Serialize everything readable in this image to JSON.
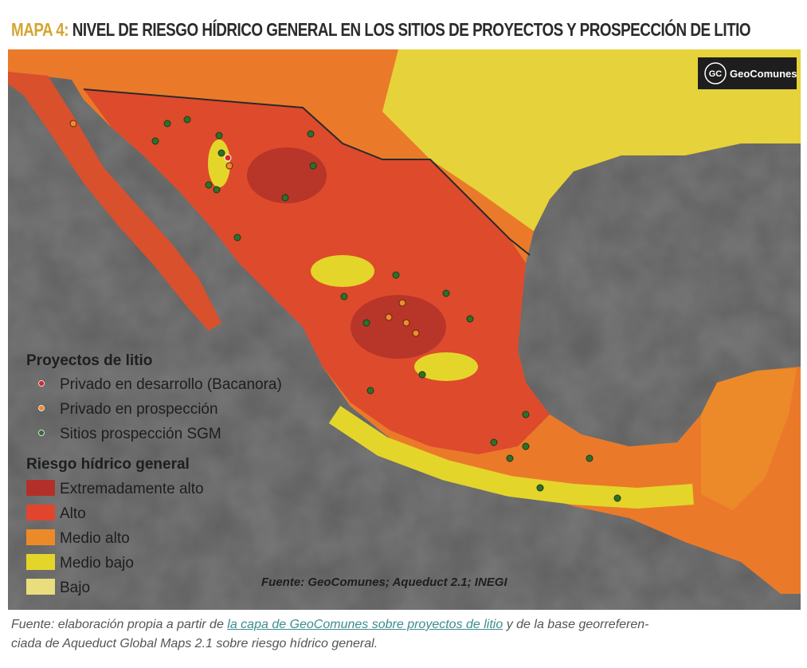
{
  "header": {
    "label": "MAPA 4:",
    "title": "NIVEL DE RIESGO HÍDRICO GENERAL EN LOS SITIOS DE PROYECTOS Y PROSPECCIÓN DE LITIO"
  },
  "map": {
    "logo": {
      "initials": "GC",
      "name": "GeoComunes"
    },
    "legend": {
      "projects_title": "Proyectos de litio",
      "projects": [
        {
          "label": "Privado en desarrollo (Bacanora)",
          "color": "#d8262a"
        },
        {
          "label": "Privado en prospección",
          "color": "#f08a2c"
        },
        {
          "label": "Sitios prospección SGM",
          "color": "#2f6f2a"
        }
      ],
      "risk_title": "Riesgo hídrico general",
      "risk": [
        {
          "label": "Extremadamente alto",
          "color": "#b3302a"
        },
        {
          "label": "Alto",
          "color": "#e2452e"
        },
        {
          "label": "Medio alto",
          "color": "#ec8a2a"
        },
        {
          "label": "Medio bajo",
          "color": "#e4d52a"
        },
        {
          "label": "Bajo",
          "color": "#e8de7c"
        }
      ]
    },
    "source": "Fuente: GeoComunes; Aqueduct 2.1; INEGI"
  },
  "caption": {
    "prefix": "Fuente: elaboración propia a partir de ",
    "link": "la capa de GeoComunes sobre proyectos de litio",
    "suffix": " y de la base georreferen-",
    "line2": "ciada de Aqueduct Global Maps 2.1 sobre riesgo hídrico general."
  }
}
